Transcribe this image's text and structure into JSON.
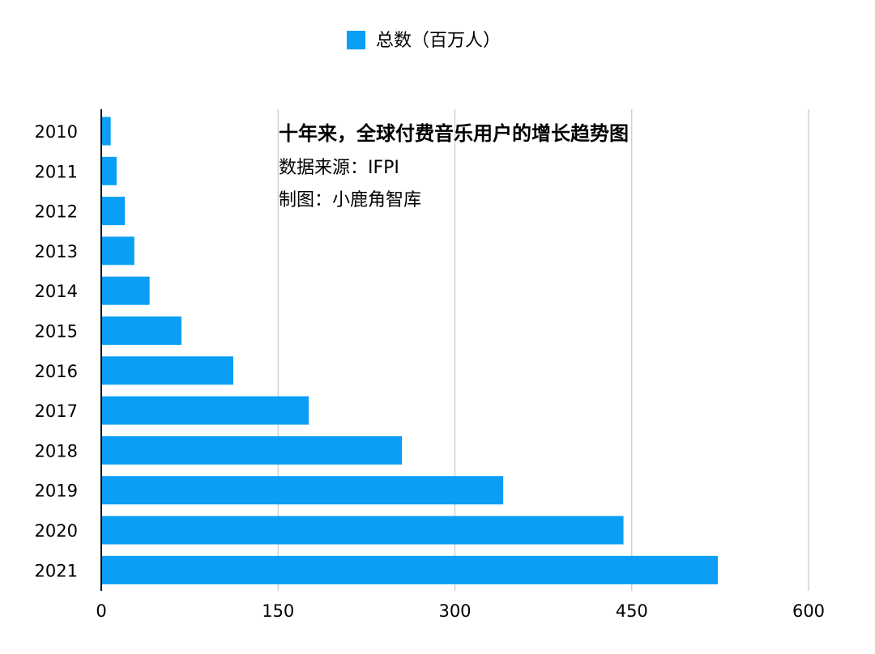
{
  "chart_data": {
    "type": "bar",
    "orientation": "horizontal",
    "categories": [
      "2010",
      "2011",
      "2012",
      "2013",
      "2014",
      "2015",
      "2016",
      "2017",
      "2018",
      "2019",
      "2020",
      "2021"
    ],
    "series": [
      {
        "name": "总数（百万人）",
        "values": [
          8,
          13,
          20,
          28,
          41,
          68,
          112,
          176,
          255,
          341,
          443,
          523
        ],
        "color": "#0a9ef5"
      }
    ],
    "xlim": [
      0,
      600
    ],
    "xticks": [
      0,
      150,
      300,
      450,
      600
    ],
    "grid": true,
    "legend": {
      "label": "总数（百万人）",
      "position": "top"
    },
    "annotation": {
      "title": "十年来，全球付费音乐用户的增长趋势图",
      "source": "数据来源：IFPI",
      "maker": "制图：小鹿角智库"
    }
  }
}
